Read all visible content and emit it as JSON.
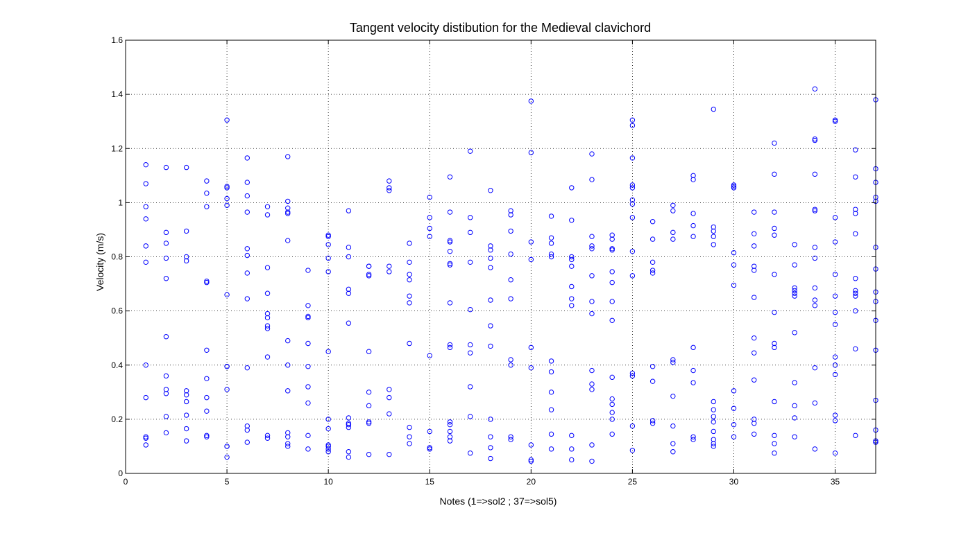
{
  "chart_data": {
    "type": "scatter",
    "title": "Tangent velocity distibution for the Medieval clavichord",
    "xlabel": "Notes (1=>sol2 ; 37=>sol5)",
    "ylabel": "Velocity (m/s)",
    "xlim": [
      0,
      37
    ],
    "ylim": [
      0,
      1.6
    ],
    "xticks": [
      0,
      5,
      10,
      15,
      20,
      25,
      30,
      35
    ],
    "xtick_labels": [
      "0",
      "5",
      "10",
      "15",
      "20",
      "25",
      "30",
      "35"
    ],
    "yticks": [
      0,
      0.2,
      0.4,
      0.6,
      0.8,
      1,
      1.2,
      1.4,
      1.6
    ],
    "ytick_labels": [
      "0",
      "0.2",
      "0.4",
      "0.6",
      "0.8",
      "1",
      "1.2",
      "1.4",
      "1.6"
    ],
    "grid": true,
    "marker": "circle-open",
    "color": "#0000ff",
    "points": [
      [
        1,
        1.14
      ],
      [
        1,
        1.07
      ],
      [
        1,
        0.985
      ],
      [
        1,
        0.94
      ],
      [
        1,
        0.84
      ],
      [
        1,
        0.78
      ],
      [
        1,
        0.4
      ],
      [
        1,
        0.28
      ],
      [
        1,
        0.135
      ],
      [
        1,
        0.13
      ],
      [
        1,
        0.105
      ],
      [
        2,
        1.13
      ],
      [
        2,
        0.89
      ],
      [
        2,
        0.85
      ],
      [
        2,
        0.795
      ],
      [
        2,
        0.72
      ],
      [
        2,
        0.505
      ],
      [
        2,
        0.36
      ],
      [
        2,
        0.31
      ],
      [
        2,
        0.295
      ],
      [
        2,
        0.21
      ],
      [
        2,
        0.15
      ],
      [
        3,
        1.13
      ],
      [
        3,
        0.895
      ],
      [
        3,
        0.8
      ],
      [
        3,
        0.785
      ],
      [
        3,
        0.305
      ],
      [
        3,
        0.29
      ],
      [
        3,
        0.265
      ],
      [
        3,
        0.215
      ],
      [
        3,
        0.165
      ],
      [
        3,
        0.12
      ],
      [
        4,
        1.08
      ],
      [
        4,
        1.035
      ],
      [
        4,
        0.985
      ],
      [
        4,
        0.71
      ],
      [
        4,
        0.705
      ],
      [
        4,
        0.455
      ],
      [
        4,
        0.35
      ],
      [
        4,
        0.28
      ],
      [
        4,
        0.23
      ],
      [
        4,
        0.14
      ],
      [
        4,
        0.135
      ],
      [
        5,
        1.305
      ],
      [
        5,
        1.06
      ],
      [
        5,
        1.055
      ],
      [
        5,
        1.015
      ],
      [
        5,
        0.99
      ],
      [
        5,
        0.66
      ],
      [
        5,
        0.395
      ],
      [
        5,
        0.395
      ],
      [
        5,
        0.31
      ],
      [
        5,
        0.1
      ],
      [
        5,
        0.1
      ],
      [
        5,
        0.06
      ],
      [
        6,
        1.165
      ],
      [
        6,
        1.075
      ],
      [
        6,
        1.025
      ],
      [
        6,
        0.965
      ],
      [
        6,
        0.83
      ],
      [
        6,
        0.805
      ],
      [
        6,
        0.74
      ],
      [
        6,
        0.645
      ],
      [
        6,
        0.39
      ],
      [
        6,
        0.175
      ],
      [
        6,
        0.16
      ],
      [
        6,
        0.115
      ],
      [
        7,
        0.985
      ],
      [
        7,
        0.955
      ],
      [
        7,
        0.76
      ],
      [
        7,
        0.665
      ],
      [
        7,
        0.59
      ],
      [
        7,
        0.575
      ],
      [
        7,
        0.545
      ],
      [
        7,
        0.535
      ],
      [
        7,
        0.43
      ],
      [
        7,
        0.14
      ],
      [
        7,
        0.13
      ],
      [
        8,
        1.17
      ],
      [
        8,
        1.005
      ],
      [
        8,
        0.98
      ],
      [
        8,
        0.965
      ],
      [
        8,
        0.96
      ],
      [
        8,
        0.86
      ],
      [
        8,
        0.49
      ],
      [
        8,
        0.4
      ],
      [
        8,
        0.305
      ],
      [
        8,
        0.15
      ],
      [
        8,
        0.135
      ],
      [
        8,
        0.11
      ],
      [
        8,
        0.1
      ],
      [
        9,
        0.75
      ],
      [
        9,
        0.62
      ],
      [
        9,
        0.58
      ],
      [
        9,
        0.575
      ],
      [
        9,
        0.48
      ],
      [
        9,
        0.395
      ],
      [
        9,
        0.32
      ],
      [
        9,
        0.26
      ],
      [
        9,
        0.14
      ],
      [
        9,
        0.09
      ],
      [
        10,
        0.88
      ],
      [
        10,
        0.875
      ],
      [
        10,
        0.845
      ],
      [
        10,
        0.795
      ],
      [
        10,
        0.745
      ],
      [
        10,
        0.45
      ],
      [
        10,
        0.2
      ],
      [
        10,
        0.165
      ],
      [
        10,
        0.105
      ],
      [
        10,
        0.1
      ],
      [
        10,
        0.09
      ],
      [
        10,
        0.08
      ],
      [
        11,
        0.97
      ],
      [
        11,
        0.835
      ],
      [
        11,
        0.8
      ],
      [
        11,
        0.68
      ],
      [
        11,
        0.665
      ],
      [
        11,
        0.555
      ],
      [
        11,
        0.205
      ],
      [
        11,
        0.185
      ],
      [
        11,
        0.18
      ],
      [
        11,
        0.17
      ],
      [
        11,
        0.08
      ],
      [
        11,
        0.06
      ],
      [
        12,
        0.765
      ],
      [
        12,
        0.765
      ],
      [
        12,
        0.735
      ],
      [
        12,
        0.73
      ],
      [
        12,
        0.45
      ],
      [
        12,
        0.3
      ],
      [
        12,
        0.25
      ],
      [
        12,
        0.19
      ],
      [
        12,
        0.185
      ],
      [
        12,
        0.07
      ],
      [
        13,
        1.08
      ],
      [
        13,
        1.055
      ],
      [
        13,
        1.045
      ],
      [
        13,
        0.765
      ],
      [
        13,
        0.745
      ],
      [
        13,
        0.31
      ],
      [
        13,
        0.28
      ],
      [
        13,
        0.22
      ],
      [
        13,
        0.07
      ],
      [
        14,
        0.85
      ],
      [
        14,
        0.78
      ],
      [
        14,
        0.735
      ],
      [
        14,
        0.715
      ],
      [
        14,
        0.655
      ],
      [
        14,
        0.63
      ],
      [
        14,
        0.48
      ],
      [
        14,
        0.17
      ],
      [
        14,
        0.135
      ],
      [
        14,
        0.11
      ],
      [
        15,
        1.02
      ],
      [
        15,
        0.945
      ],
      [
        15,
        0.905
      ],
      [
        15,
        0.875
      ],
      [
        15,
        0.435
      ],
      [
        15,
        0.155
      ],
      [
        15,
        0.095
      ],
      [
        15,
        0.09
      ],
      [
        16,
        1.095
      ],
      [
        16,
        0.965
      ],
      [
        16,
        0.86
      ],
      [
        16,
        0.855
      ],
      [
        16,
        0.82
      ],
      [
        16,
        0.775
      ],
      [
        16,
        0.77
      ],
      [
        16,
        0.63
      ],
      [
        16,
        0.475
      ],
      [
        16,
        0.465
      ],
      [
        16,
        0.19
      ],
      [
        16,
        0.18
      ],
      [
        16,
        0.155
      ],
      [
        16,
        0.135
      ],
      [
        16,
        0.12
      ],
      [
        17,
        1.19
      ],
      [
        17,
        0.945
      ],
      [
        17,
        0.89
      ],
      [
        17,
        0.78
      ],
      [
        17,
        0.605
      ],
      [
        17,
        0.475
      ],
      [
        17,
        0.445
      ],
      [
        17,
        0.32
      ],
      [
        17,
        0.21
      ],
      [
        17,
        0.075
      ],
      [
        18,
        1.045
      ],
      [
        18,
        0.84
      ],
      [
        18,
        0.825
      ],
      [
        18,
        0.795
      ],
      [
        18,
        0.76
      ],
      [
        18,
        0.64
      ],
      [
        18,
        0.545
      ],
      [
        18,
        0.47
      ],
      [
        18,
        0.2
      ],
      [
        18,
        0.135
      ],
      [
        18,
        0.095
      ],
      [
        18,
        0.055
      ],
      [
        19,
        0.97
      ],
      [
        19,
        0.955
      ],
      [
        19,
        0.895
      ],
      [
        19,
        0.81
      ],
      [
        19,
        0.715
      ],
      [
        19,
        0.645
      ],
      [
        19,
        0.42
      ],
      [
        19,
        0.4
      ],
      [
        19,
        0.135
      ],
      [
        19,
        0.125
      ],
      [
        20,
        1.375
      ],
      [
        20,
        1.185
      ],
      [
        20,
        0.855
      ],
      [
        20,
        0.79
      ],
      [
        20,
        0.465
      ],
      [
        20,
        0.39
      ],
      [
        20,
        0.105
      ],
      [
        20,
        0.05
      ],
      [
        20,
        0.045
      ],
      [
        21,
        0.95
      ],
      [
        21,
        0.87
      ],
      [
        21,
        0.85
      ],
      [
        21,
        0.81
      ],
      [
        21,
        0.8
      ],
      [
        21,
        0.415
      ],
      [
        21,
        0.375
      ],
      [
        21,
        0.3
      ],
      [
        21,
        0.235
      ],
      [
        21,
        0.145
      ],
      [
        21,
        0.09
      ],
      [
        22,
        1.055
      ],
      [
        22,
        0.935
      ],
      [
        22,
        0.8
      ],
      [
        22,
        0.79
      ],
      [
        22,
        0.765
      ],
      [
        22,
        0.69
      ],
      [
        22,
        0.645
      ],
      [
        22,
        0.62
      ],
      [
        22,
        0.14
      ],
      [
        22,
        0.09
      ],
      [
        22,
        0.05
      ],
      [
        23,
        1.18
      ],
      [
        23,
        1.085
      ],
      [
        23,
        0.875
      ],
      [
        23,
        0.84
      ],
      [
        23,
        0.83
      ],
      [
        23,
        0.73
      ],
      [
        23,
        0.635
      ],
      [
        23,
        0.59
      ],
      [
        23,
        0.38
      ],
      [
        23,
        0.33
      ],
      [
        23,
        0.31
      ],
      [
        23,
        0.105
      ],
      [
        23,
        0.045
      ],
      [
        24,
        0.88
      ],
      [
        24,
        0.865
      ],
      [
        24,
        0.83
      ],
      [
        24,
        0.825
      ],
      [
        24,
        0.745
      ],
      [
        24,
        0.705
      ],
      [
        24,
        0.635
      ],
      [
        24,
        0.565
      ],
      [
        24,
        0.355
      ],
      [
        24,
        0.275
      ],
      [
        24,
        0.255
      ],
      [
        24,
        0.225
      ],
      [
        24,
        0.2
      ],
      [
        24,
        0.145
      ],
      [
        25,
        1.305
      ],
      [
        25,
        1.285
      ],
      [
        25,
        1.165
      ],
      [
        25,
        1.065
      ],
      [
        25,
        1.055
      ],
      [
        25,
        1.01
      ],
      [
        25,
        0.995
      ],
      [
        25,
        0.945
      ],
      [
        25,
        0.82
      ],
      [
        25,
        0.73
      ],
      [
        25,
        0.37
      ],
      [
        25,
        0.36
      ],
      [
        25,
        0.175
      ],
      [
        25,
        0.085
      ],
      [
        26,
        0.93
      ],
      [
        26,
        0.865
      ],
      [
        26,
        0.78
      ],
      [
        26,
        0.75
      ],
      [
        26,
        0.74
      ],
      [
        26,
        0.395
      ],
      [
        26,
        0.34
      ],
      [
        26,
        0.195
      ],
      [
        26,
        0.185
      ],
      [
        27,
        0.99
      ],
      [
        27,
        0.97
      ],
      [
        27,
        0.89
      ],
      [
        27,
        0.865
      ],
      [
        27,
        0.42
      ],
      [
        27,
        0.41
      ],
      [
        27,
        0.285
      ],
      [
        27,
        0.175
      ],
      [
        27,
        0.11
      ],
      [
        27,
        0.08
      ],
      [
        28,
        1.1
      ],
      [
        28,
        1.085
      ],
      [
        28,
        0.96
      ],
      [
        28,
        0.915
      ],
      [
        28,
        0.875
      ],
      [
        28,
        0.465
      ],
      [
        28,
        0.38
      ],
      [
        28,
        0.335
      ],
      [
        28,
        0.135
      ],
      [
        28,
        0.125
      ],
      [
        29,
        1.345
      ],
      [
        29,
        0.91
      ],
      [
        29,
        0.895
      ],
      [
        29,
        0.875
      ],
      [
        29,
        0.845
      ],
      [
        29,
        0.265
      ],
      [
        29,
        0.235
      ],
      [
        29,
        0.21
      ],
      [
        29,
        0.19
      ],
      [
        29,
        0.155
      ],
      [
        29,
        0.125
      ],
      [
        29,
        0.11
      ],
      [
        29,
        0.1
      ],
      [
        30,
        1.065
      ],
      [
        30,
        1.06
      ],
      [
        30,
        1.055
      ],
      [
        30,
        0.815
      ],
      [
        30,
        0.77
      ],
      [
        30,
        0.695
      ],
      [
        30,
        0.305
      ],
      [
        30,
        0.24
      ],
      [
        30,
        0.18
      ],
      [
        30,
        0.135
      ],
      [
        31,
        0.965
      ],
      [
        31,
        0.885
      ],
      [
        31,
        0.84
      ],
      [
        31,
        0.765
      ],
      [
        31,
        0.75
      ],
      [
        31,
        0.65
      ],
      [
        31,
        0.5
      ],
      [
        31,
        0.445
      ],
      [
        31,
        0.345
      ],
      [
        31,
        0.2
      ],
      [
        31,
        0.185
      ],
      [
        31,
        0.145
      ],
      [
        32,
        1.22
      ],
      [
        32,
        1.105
      ],
      [
        32,
        0.965
      ],
      [
        32,
        0.905
      ],
      [
        32,
        0.88
      ],
      [
        32,
        0.735
      ],
      [
        32,
        0.595
      ],
      [
        32,
        0.48
      ],
      [
        32,
        0.465
      ],
      [
        32,
        0.265
      ],
      [
        32,
        0.14
      ],
      [
        32,
        0.11
      ],
      [
        32,
        0.075
      ],
      [
        33,
        0.845
      ],
      [
        33,
        0.77
      ],
      [
        33,
        0.685
      ],
      [
        33,
        0.675
      ],
      [
        33,
        0.665
      ],
      [
        33,
        0.655
      ],
      [
        33,
        0.52
      ],
      [
        33,
        0.335
      ],
      [
        33,
        0.25
      ],
      [
        33,
        0.205
      ],
      [
        33,
        0.135
      ],
      [
        34,
        1.42
      ],
      [
        34,
        1.235
      ],
      [
        34,
        1.23
      ],
      [
        34,
        1.105
      ],
      [
        34,
        0.975
      ],
      [
        34,
        0.97
      ],
      [
        34,
        0.835
      ],
      [
        34,
        0.795
      ],
      [
        34,
        0.685
      ],
      [
        34,
        0.64
      ],
      [
        34,
        0.62
      ],
      [
        34,
        0.39
      ],
      [
        34,
        0.26
      ],
      [
        34,
        0.09
      ],
      [
        35,
        1.305
      ],
      [
        35,
        1.3
      ],
      [
        35,
        0.945
      ],
      [
        35,
        0.855
      ],
      [
        35,
        0.735
      ],
      [
        35,
        0.655
      ],
      [
        35,
        0.595
      ],
      [
        35,
        0.55
      ],
      [
        35,
        0.43
      ],
      [
        35,
        0.4
      ],
      [
        35,
        0.365
      ],
      [
        35,
        0.215
      ],
      [
        35,
        0.195
      ],
      [
        35,
        0.075
      ],
      [
        36,
        1.195
      ],
      [
        36,
        1.095
      ],
      [
        36,
        0.975
      ],
      [
        36,
        0.96
      ],
      [
        36,
        0.885
      ],
      [
        36,
        0.72
      ],
      [
        36,
        0.675
      ],
      [
        36,
        0.665
      ],
      [
        36,
        0.655
      ],
      [
        36,
        0.6
      ],
      [
        36,
        0.46
      ],
      [
        36,
        0.14
      ],
      [
        37,
        1.38
      ],
      [
        37,
        1.125
      ],
      [
        37,
        1.075
      ],
      [
        37,
        1.02
      ],
      [
        37,
        1.005
      ],
      [
        37,
        0.835
      ],
      [
        37,
        0.755
      ],
      [
        37,
        0.67
      ],
      [
        37,
        0.635
      ],
      [
        37,
        0.565
      ],
      [
        37,
        0.455
      ],
      [
        37,
        0.27
      ],
      [
        37,
        0.16
      ],
      [
        37,
        0.12
      ],
      [
        37,
        0.115
      ]
    ]
  }
}
